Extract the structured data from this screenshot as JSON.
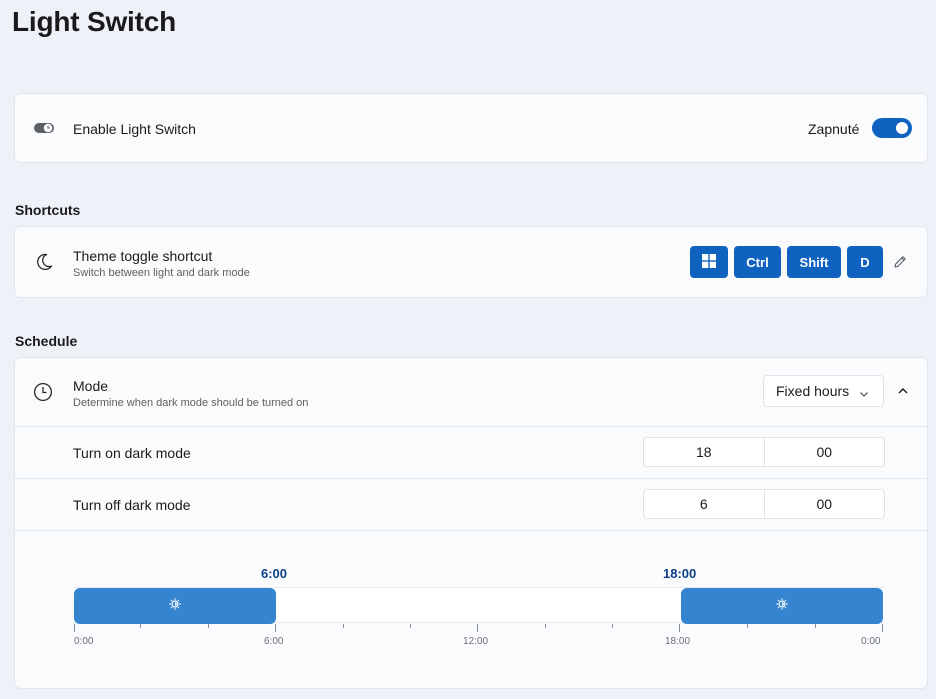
{
  "page": {
    "title": "Light Switch"
  },
  "enable": {
    "label": "Enable Light Switch",
    "state_text": "Zapnuté",
    "enabled": true
  },
  "shortcuts": {
    "section_title": "Shortcuts",
    "theme_toggle": {
      "title": "Theme toggle shortcut",
      "description": "Switch between light and dark mode",
      "keys": [
        "win-key",
        "Ctrl",
        "Shift",
        "D"
      ]
    }
  },
  "schedule": {
    "section_title": "Schedule",
    "mode": {
      "title": "Mode",
      "description": "Determine when dark mode should be turned on",
      "selected": "Fixed hours"
    },
    "turn_on": {
      "label": "Turn on dark mode",
      "hour": "18",
      "minute": "00"
    },
    "turn_off": {
      "label": "Turn off dark mode",
      "hour": "6",
      "minute": "00"
    },
    "timeline": {
      "marker_off": "6:00",
      "marker_on": "18:00",
      "tick_labels": [
        "0:00",
        "6:00",
        "12:00",
        "18:00",
        "0:00"
      ]
    }
  },
  "colors": {
    "accent": "#0f62c0",
    "timeline_dark": "#3484d0",
    "marker_text": "#0d3f86"
  }
}
